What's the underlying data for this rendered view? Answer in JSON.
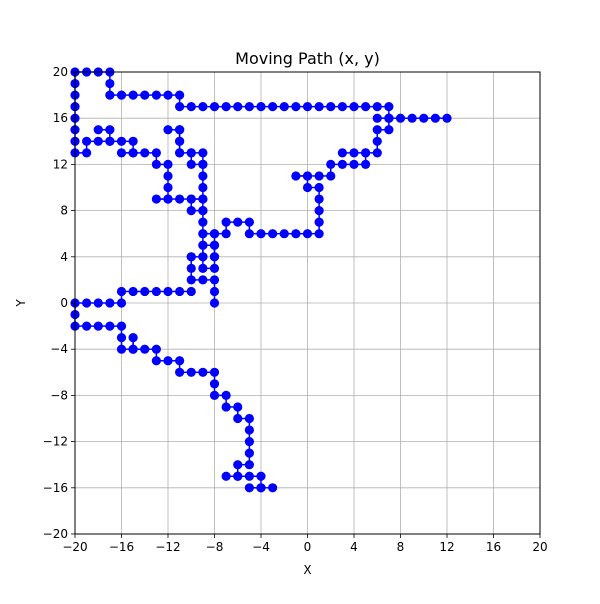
{
  "chart_data": {
    "type": "scatter",
    "title": "Moving Path (x, y)",
    "xlabel": "X",
    "ylabel": "Y",
    "xlim": [
      -20,
      20
    ],
    "ylim": [
      -20,
      20
    ],
    "xticks": [
      -20,
      -16,
      -12,
      -8,
      -4,
      0,
      4,
      8,
      12,
      16,
      20
    ],
    "yticks": [
      -20,
      -16,
      -12,
      -8,
      -4,
      0,
      4,
      8,
      12,
      16,
      20
    ],
    "grid": true,
    "marker_color": "#0000ff",
    "line_color": "#0000ff",
    "series": [
      {
        "name": "path",
        "points": [
          [
            -8,
            0
          ],
          [
            -8,
            1
          ],
          [
            -8,
            2
          ],
          [
            -9,
            2
          ],
          [
            -10,
            2
          ],
          [
            -10,
            3
          ],
          [
            -10,
            4
          ],
          [
            -9,
            4
          ],
          [
            -9,
            5
          ],
          [
            -8,
            5
          ],
          [
            -8,
            4
          ],
          [
            -8,
            3
          ],
          [
            -9,
            3
          ],
          [
            -9,
            4
          ],
          [
            -9,
            5
          ],
          [
            -9,
            6
          ],
          [
            -8,
            6
          ],
          [
            -7,
            6
          ],
          [
            -7,
            7
          ],
          [
            -6,
            7
          ],
          [
            -5,
            7
          ],
          [
            -5,
            6
          ],
          [
            -4,
            6
          ],
          [
            -3,
            6
          ],
          [
            -2,
            6
          ],
          [
            -1,
            6
          ],
          [
            0,
            6
          ],
          [
            1,
            6
          ],
          [
            1,
            7
          ],
          [
            1,
            8
          ],
          [
            1,
            9
          ],
          [
            1,
            10
          ],
          [
            0,
            10
          ],
          [
            0,
            11
          ],
          [
            -1,
            11
          ],
          [
            0,
            11
          ],
          [
            1,
            11
          ],
          [
            2,
            11
          ],
          [
            2,
            12
          ],
          [
            3,
            12
          ],
          [
            4,
            12
          ],
          [
            5,
            12
          ],
          [
            5,
            13
          ],
          [
            4,
            13
          ],
          [
            3,
            13
          ],
          [
            5,
            13
          ],
          [
            6,
            13
          ],
          [
            6,
            14
          ],
          [
            6,
            15
          ],
          [
            7,
            15
          ],
          [
            7,
            16
          ],
          [
            6,
            16
          ],
          [
            7,
            16
          ],
          [
            8,
            16
          ],
          [
            9,
            16
          ],
          [
            10,
            16
          ],
          [
            11,
            16
          ],
          [
            12,
            16
          ],
          [
            7,
            16
          ],
          [
            7,
            17
          ],
          [
            6,
            17
          ],
          [
            5,
            17
          ],
          [
            4,
            17
          ],
          [
            3,
            17
          ],
          [
            2,
            17
          ],
          [
            1,
            17
          ],
          [
            0,
            17
          ],
          [
            -1,
            17
          ],
          [
            -2,
            17
          ],
          [
            -3,
            17
          ],
          [
            -4,
            17
          ],
          [
            -5,
            17
          ],
          [
            -6,
            17
          ],
          [
            -7,
            17
          ],
          [
            -8,
            17
          ],
          [
            -9,
            17
          ],
          [
            -10,
            17
          ],
          [
            -11,
            17
          ],
          [
            -11,
            18
          ],
          [
            -12,
            18
          ],
          [
            -13,
            18
          ],
          [
            -14,
            18
          ],
          [
            -15,
            18
          ],
          [
            -16,
            18
          ],
          [
            -17,
            18
          ],
          [
            -17,
            19
          ],
          [
            -17,
            20
          ],
          [
            -18,
            20
          ],
          [
            -19,
            20
          ],
          [
            -20,
            20
          ],
          [
            -20,
            19
          ],
          [
            -20,
            18
          ],
          [
            -20,
            17
          ],
          [
            -20,
            16
          ],
          [
            -20,
            15
          ],
          [
            -20,
            14
          ],
          [
            -20,
            13
          ],
          [
            -19,
            13
          ],
          [
            -19,
            14
          ],
          [
            -18,
            14
          ],
          [
            -17,
            14
          ],
          [
            -17,
            15
          ],
          [
            -18,
            15
          ],
          [
            -17,
            14
          ],
          [
            -16,
            14
          ],
          [
            -15,
            14
          ],
          [
            -15,
            13
          ],
          [
            -16,
            13
          ],
          [
            -15,
            13
          ],
          [
            -14,
            13
          ],
          [
            -13,
            13
          ],
          [
            -13,
            12
          ],
          [
            -12,
            12
          ],
          [
            -12,
            11
          ],
          [
            -12,
            10
          ],
          [
            -12,
            9
          ],
          [
            -13,
            9
          ],
          [
            -12,
            9
          ],
          [
            -11,
            9
          ],
          [
            -10,
            9
          ],
          [
            -10,
            8
          ],
          [
            -9,
            8
          ],
          [
            -9,
            9
          ],
          [
            -10,
            9
          ],
          [
            -9,
            9
          ],
          [
            -9,
            10
          ],
          [
            -9,
            11
          ],
          [
            -9,
            12
          ],
          [
            -9,
            13
          ],
          [
            -10,
            13
          ],
          [
            -10,
            12
          ],
          [
            -9,
            12
          ],
          [
            -10,
            13
          ],
          [
            -11,
            13
          ],
          [
            -11,
            14
          ],
          [
            -11,
            15
          ],
          [
            -12,
            15
          ],
          [
            -11,
            15
          ],
          [
            -11,
            14
          ],
          [
            -11,
            13
          ],
          [
            -9,
            8
          ],
          [
            -9,
            7
          ],
          [
            -9,
            6
          ],
          [
            -8,
            6
          ],
          [
            -8,
            5
          ],
          [
            -8,
            4
          ],
          [
            -10,
            4
          ],
          [
            -10,
            1
          ],
          [
            -11,
            1
          ],
          [
            -12,
            1
          ],
          [
            -13,
            1
          ],
          [
            -14,
            1
          ],
          [
            -15,
            1
          ],
          [
            -16,
            1
          ],
          [
            -16,
            0
          ],
          [
            -17,
            0
          ],
          [
            -18,
            0
          ],
          [
            -19,
            0
          ],
          [
            -20,
            0
          ],
          [
            -20,
            -1
          ],
          [
            -20,
            -2
          ],
          [
            -19,
            -2
          ],
          [
            -18,
            -2
          ],
          [
            -17,
            -2
          ],
          [
            -16,
            -2
          ],
          [
            -16,
            -3
          ],
          [
            -16,
            -4
          ],
          [
            -15,
            -4
          ],
          [
            -15,
            -3
          ],
          [
            -15,
            -4
          ],
          [
            -14,
            -4
          ],
          [
            -13,
            -4
          ],
          [
            -13,
            -5
          ],
          [
            -12,
            -5
          ],
          [
            -11,
            -5
          ],
          [
            -11,
            -6
          ],
          [
            -10,
            -6
          ],
          [
            -9,
            -6
          ],
          [
            -8,
            -6
          ],
          [
            -8,
            -7
          ],
          [
            -8,
            -8
          ],
          [
            -7,
            -8
          ],
          [
            -7,
            -9
          ],
          [
            -6,
            -9
          ],
          [
            -6,
            -10
          ],
          [
            -5,
            -10
          ],
          [
            -5,
            -11
          ],
          [
            -5,
            -12
          ],
          [
            -5,
            -13
          ],
          [
            -5,
            -14
          ],
          [
            -6,
            -14
          ],
          [
            -6,
            -15
          ],
          [
            -7,
            -15
          ],
          [
            -6,
            -15
          ],
          [
            -5,
            -15
          ],
          [
            -4,
            -15
          ],
          [
            -4,
            -16
          ],
          [
            -5,
            -16
          ],
          [
            -4,
            -16
          ],
          [
            -3,
            -16
          ]
        ]
      }
    ]
  }
}
